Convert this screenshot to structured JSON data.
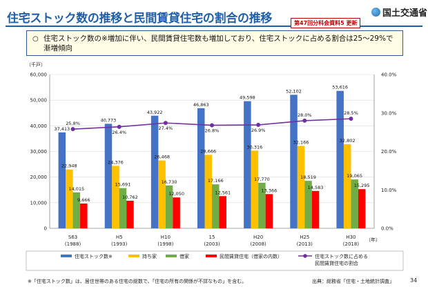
{
  "slide": {
    "title": "住宅ストック数の推移と民間賃貸住宅の割合の推移",
    "badge": "第47回分科会資料5 更新",
    "logo_text": "国土交通省",
    "summary_bullet": "○",
    "summary": "住宅ストック数の※増加に伴い、民間賃貸住宅数も増加しており、住宅ストックに占める割合は25～29%で漸増傾向",
    "footnote": "※「住宅ストック数」は、居住世帯のある住宅の総数で、「住宅の所有の関係が不詳なもの」を含む。",
    "source": "出典：総務省「住宅・土地統計調査」",
    "page_number": "34",
    "colors": {
      "title": "#1f5fa8",
      "stock": "#4472c4",
      "owned": "#ffc000",
      "rented": "#70ad47",
      "private_rental": "#ff0000",
      "ratio": "#7030a0"
    }
  },
  "chart_data": {
    "type": "bar",
    "title": "",
    "categories": [
      {
        "top": "S63",
        "bottom": "(1988)"
      },
      {
        "top": "H5",
        "bottom": "(1993)"
      },
      {
        "top": "H10",
        "bottom": "(1998)"
      },
      {
        "top": "15",
        "bottom": "(2003)"
      },
      {
        "top": "H20",
        "bottom": "(2008)"
      },
      {
        "top": "H25",
        "bottom": "(2013)"
      },
      {
        "top": "H30",
        "bottom": "(2018)"
      }
    ],
    "y_unit": "（千戸）",
    "x_unit": "（年）",
    "ylim": [
      0,
      60000
    ],
    "y_ticks": [
      "0",
      "10,000",
      "20,000",
      "30,000",
      "40,000",
      "50,000",
      "60,000"
    ],
    "y2lim": [
      0,
      40
    ],
    "y2_ticks": [
      "0.0%",
      "10.0%",
      "20.0%",
      "30.0%",
      "40.0%"
    ],
    "series": [
      {
        "name": "住宅ストック数※",
        "key": "stock",
        "values": [
          37413,
          40773,
          43922,
          46863,
          49598,
          52102,
          53616
        ],
        "labels": [
          "37,413",
          "40,773",
          "43,922",
          "46,863",
          "49,598",
          "52,102",
          "53,616"
        ]
      },
      {
        "name": "持ち家",
        "key": "owned",
        "values": [
          22948,
          24376,
          26468,
          28666,
          30316,
          32166,
          32802
        ],
        "labels": [
          "22,948",
          "24,376",
          "26,468",
          "28,666",
          "30,316",
          "32,166",
          "32,802"
        ]
      },
      {
        "name": "借家",
        "key": "rented",
        "values": [
          14015,
          15691,
          16730,
          17166,
          17770,
          18519,
          19065
        ],
        "labels": [
          "14,015",
          "15,691",
          "16,730",
          "17,166",
          "17,770",
          "18,519",
          "19,065"
        ]
      },
      {
        "name": "民間賃貸住宅（借家の内数）",
        "key": "private_rental",
        "values": [
          9666,
          10762,
          12050,
          12561,
          13366,
          14583,
          15295
        ],
        "labels": [
          "9,666",
          "10,762",
          "12,050",
          "12,561",
          "13,366",
          "14,583",
          "15,295"
        ]
      }
    ],
    "line_series": {
      "name": "住宅ストック数に占める民間賃貸住宅の割合",
      "legend_lines": [
        "住宅ストック数に占める",
        "民間賃貸住宅の割合"
      ],
      "values": [
        25.8,
        26.4,
        27.4,
        26.8,
        26.9,
        28.0,
        28.5
      ],
      "labels": [
        "25.8%",
        "26.4%",
        "27.4%",
        "26.8%",
        "26.9%",
        "28.0%",
        "28.5%"
      ]
    },
    "legend_position": "bottom"
  }
}
